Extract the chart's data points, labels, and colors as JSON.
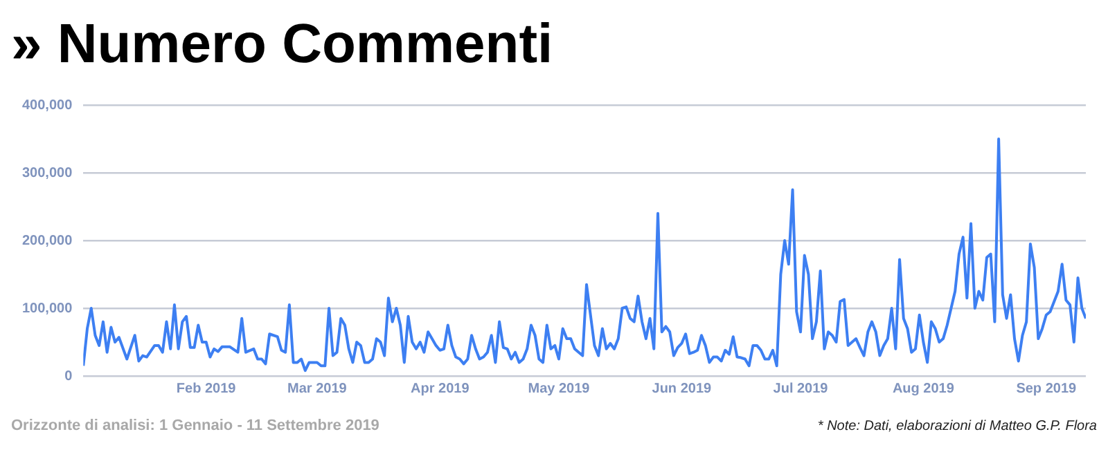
{
  "chart_data": {
    "type": "line",
    "title": "» Numero Commenti",
    "annotations": [
      "Orizzonte di analisi: 1 Gennaio - 11 Settembre 2019",
      "* Note: Dati, elaborazioni di Matteo G.P. Flora"
    ],
    "marker": "none",
    "line_style": "solid",
    "grid": "y",
    "xlim": [
      "2019-01-01",
      "2019-09-11"
    ],
    "xticks": [
      {
        "value": "2019-02-01",
        "label": "Feb 2019"
      },
      {
        "value": "2019-03-01",
        "label": "Mar 2019"
      },
      {
        "value": "2019-04-01",
        "label": "Apr 2019"
      },
      {
        "value": "2019-05-01",
        "label": "May 2019"
      },
      {
        "value": "2019-06-01",
        "label": "Jun 2019"
      },
      {
        "value": "2019-07-01",
        "label": "Jul 2019"
      },
      {
        "value": "2019-08-01",
        "label": "Aug 2019"
      },
      {
        "value": "2019-09-01",
        "label": "Sep 2019"
      }
    ],
    "ylim": [
      0,
      400000
    ],
    "yticks": [
      0,
      {
        "value": 100000,
        "label": "100,000"
      },
      {
        "value": 200000,
        "label": "200,000"
      },
      {
        "value": 300000,
        "label": "300,000"
      },
      {
        "value": 400000,
        "label": "400,000"
      }
    ],
    "series": [
      {
        "color": "#3d7ff2",
        "x": [
          "2019-01-01",
          "2019-01-02",
          "2019-01-03",
          "2019-01-04",
          "2019-01-05",
          "2019-01-06",
          "2019-01-07",
          "2019-01-08",
          "2019-01-09",
          "2019-01-10",
          "2019-01-12",
          "2019-01-14",
          "2019-01-15",
          "2019-01-16",
          "2019-01-17",
          "2019-01-19",
          "2019-01-20",
          "2019-01-21",
          "2019-01-22",
          "2019-01-23",
          "2019-01-24",
          "2019-01-25",
          "2019-01-26",
          "2019-01-27",
          "2019-01-28",
          "2019-01-29",
          "2019-01-30",
          "2019-01-31",
          "2019-02-01",
          "2019-02-02",
          "2019-02-03",
          "2019-02-04",
          "2019-02-05",
          "2019-02-07",
          "2019-02-09",
          "2019-02-10",
          "2019-02-11",
          "2019-02-13",
          "2019-02-14",
          "2019-02-15",
          "2019-02-16",
          "2019-02-17",
          "2019-02-19",
          "2019-02-20",
          "2019-02-21",
          "2019-02-22",
          "2019-02-23",
          "2019-02-24",
          "2019-02-25",
          "2019-02-26",
          "2019-02-27",
          "2019-03-01",
          "2019-03-02",
          "2019-03-03",
          "2019-03-04",
          "2019-03-05",
          "2019-03-06",
          "2019-03-07",
          "2019-03-08",
          "2019-03-09",
          "2019-03-10",
          "2019-03-11",
          "2019-03-12",
          "2019-03-13",
          "2019-03-14",
          "2019-03-15",
          "2019-03-16",
          "2019-03-17",
          "2019-03-18",
          "2019-03-19",
          "2019-03-20",
          "2019-03-21",
          "2019-03-22",
          "2019-03-23",
          "2019-03-24",
          "2019-03-25",
          "2019-03-26",
          "2019-03-27",
          "2019-03-28",
          "2019-03-29",
          "2019-03-30",
          "2019-03-31",
          "2019-04-01",
          "2019-04-02",
          "2019-04-03",
          "2019-04-04",
          "2019-04-05",
          "2019-04-06",
          "2019-04-07",
          "2019-04-08",
          "2019-04-09",
          "2019-04-10",
          "2019-04-11",
          "2019-04-12",
          "2019-04-13",
          "2019-04-14",
          "2019-04-15",
          "2019-04-16",
          "2019-04-17",
          "2019-04-18",
          "2019-04-19",
          "2019-04-20",
          "2019-04-21",
          "2019-04-22",
          "2019-04-23",
          "2019-04-24",
          "2019-04-25",
          "2019-04-26",
          "2019-04-27",
          "2019-04-28",
          "2019-04-29",
          "2019-04-30",
          "2019-05-01",
          "2019-05-02",
          "2019-05-03",
          "2019-05-04",
          "2019-05-05",
          "2019-05-07",
          "2019-05-08",
          "2019-05-10",
          "2019-05-11",
          "2019-05-12",
          "2019-05-13",
          "2019-05-14",
          "2019-05-15",
          "2019-05-16",
          "2019-05-17",
          "2019-05-18",
          "2019-05-19",
          "2019-05-20",
          "2019-05-21",
          "2019-05-22",
          "2019-05-23",
          "2019-05-24",
          "2019-05-25",
          "2019-05-26",
          "2019-05-27",
          "2019-05-28",
          "2019-05-29",
          "2019-05-30",
          "2019-05-31",
          "2019-06-01",
          "2019-06-02",
          "2019-06-03",
          "2019-06-04",
          "2019-06-05",
          "2019-06-06",
          "2019-06-07",
          "2019-06-08",
          "2019-06-09",
          "2019-06-10",
          "2019-06-11",
          "2019-06-12",
          "2019-06-13",
          "2019-06-14",
          "2019-06-15",
          "2019-06-16",
          "2019-06-17",
          "2019-06-18",
          "2019-06-19",
          "2019-06-20",
          "2019-06-21",
          "2019-06-22",
          "2019-06-23",
          "2019-06-24",
          "2019-06-25",
          "2019-06-26",
          "2019-06-27",
          "2019-06-28",
          "2019-06-29",
          "2019-06-30",
          "2019-07-01",
          "2019-07-02",
          "2019-07-03",
          "2019-07-04",
          "2019-07-05",
          "2019-07-06",
          "2019-07-07",
          "2019-07-08",
          "2019-07-09",
          "2019-07-10",
          "2019-07-11",
          "2019-07-12",
          "2019-07-13",
          "2019-07-14",
          "2019-07-15",
          "2019-07-16",
          "2019-07-17",
          "2019-07-18",
          "2019-07-19",
          "2019-07-20",
          "2019-07-21",
          "2019-07-22",
          "2019-07-23",
          "2019-07-24",
          "2019-07-25",
          "2019-07-26",
          "2019-07-27",
          "2019-07-28",
          "2019-07-29",
          "2019-07-30",
          "2019-07-31",
          "2019-08-01",
          "2019-08-02",
          "2019-08-03",
          "2019-08-04",
          "2019-08-05",
          "2019-08-06",
          "2019-08-07",
          "2019-08-08",
          "2019-08-09",
          "2019-08-10",
          "2019-08-11",
          "2019-08-12",
          "2019-08-13",
          "2019-08-14",
          "2019-08-15",
          "2019-08-16",
          "2019-08-17",
          "2019-08-18",
          "2019-08-19",
          "2019-08-20",
          "2019-08-21",
          "2019-08-22",
          "2019-08-23",
          "2019-08-24",
          "2019-08-25",
          "2019-08-26",
          "2019-08-27",
          "2019-08-28",
          "2019-08-29",
          "2019-08-30",
          "2019-08-31",
          "2019-09-01",
          "2019-09-02",
          "2019-09-03",
          "2019-09-04",
          "2019-09-05",
          "2019-09-06",
          "2019-09-07",
          "2019-09-08",
          "2019-09-09",
          "2019-09-10",
          "2019-09-11"
        ],
        "values": [
          15000,
          70000,
          100000,
          60000,
          45000,
          80000,
          35000,
          72000,
          50000,
          57000,
          25000,
          60000,
          22000,
          30000,
          28000,
          45000,
          45000,
          35000,
          80000,
          40000,
          105000,
          40000,
          80000,
          88000,
          42000,
          42000,
          75000,
          50000,
          50000,
          28000,
          40000,
          36000,
          43000,
          43000,
          35000,
          85000,
          35000,
          40000,
          25000,
          25000,
          18000,
          62000,
          58000,
          38000,
          35000,
          105000,
          20000,
          20000,
          25000,
          8000,
          20000,
          20000,
          15000,
          15000,
          100000,
          30000,
          35000,
          85000,
          75000,
          40000,
          20000,
          50000,
          45000,
          20000,
          20000,
          25000,
          55000,
          50000,
          30000,
          115000,
          80000,
          100000,
          75000,
          20000,
          88000,
          50000,
          40000,
          50000,
          35000,
          65000,
          55000,
          45000,
          38000,
          40000,
          75000,
          45000,
          28000,
          25000,
          18000,
          25000,
          60000,
          40000,
          25000,
          28000,
          35000,
          60000,
          20000,
          80000,
          42000,
          40000,
          25000,
          35000,
          20000,
          25000,
          40000,
          75000,
          60000,
          25000,
          20000,
          75000,
          40000,
          45000,
          25000,
          70000,
          55000,
          55000,
          40000,
          30000,
          135000,
          45000,
          30000,
          70000,
          40000,
          48000,
          40000,
          55000,
          100000,
          102000,
          85000,
          80000,
          118000,
          80000,
          55000,
          85000,
          40000,
          240000,
          65000,
          73000,
          65000,
          30000,
          42000,
          48000,
          62000,
          33000,
          35000,
          38000,
          60000,
          45000,
          20000,
          28000,
          28000,
          22000,
          38000,
          32000,
          58000,
          28000,
          27000,
          25000,
          15000,
          45000,
          45000,
          38000,
          25000,
          25000,
          38000,
          15000,
          150000,
          200000,
          165000,
          275000,
          95000,
          65000,
          178000,
          150000,
          55000,
          80000,
          155000,
          40000,
          65000,
          60000,
          50000,
          110000,
          113000,
          45000,
          50000,
          55000,
          42000,
          30000,
          65000,
          80000,
          65000,
          30000,
          45000,
          55000,
          100000,
          40000,
          172000,
          85000,
          70000,
          35000,
          40000,
          90000,
          50000,
          20000,
          80000,
          70000,
          50000,
          55000,
          75000,
          100000,
          125000,
          180000,
          205000,
          115000,
          225000,
          100000,
          125000,
          112000,
          175000,
          180000,
          80000,
          350000,
          120000,
          85000,
          120000,
          55000,
          22000,
          60000,
          80000,
          195000,
          160000,
          55000,
          70000,
          90000,
          95000,
          110000,
          125000,
          165000,
          112000,
          105000,
          50000,
          145000,
          100000,
          85000
        ]
      }
    ]
  }
}
